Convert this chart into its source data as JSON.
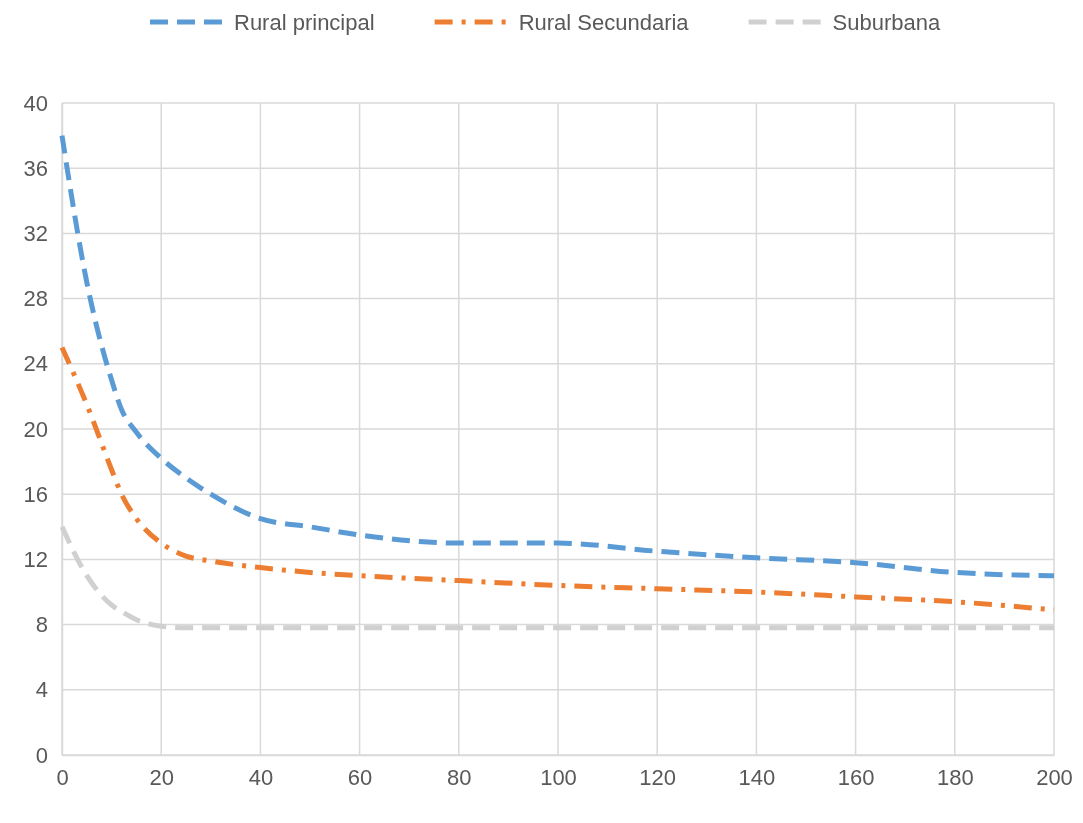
{
  "chart_data": {
    "type": "line",
    "legend": "top",
    "grid": true,
    "xlim": [
      0,
      200
    ],
    "xticks": [
      0,
      20,
      40,
      60,
      80,
      100,
      120,
      140,
      160,
      180,
      200
    ],
    "ylim": [
      0,
      40
    ],
    "yticks": [
      0,
      4,
      8,
      12,
      16,
      20,
      24,
      28,
      32,
      36,
      40
    ],
    "x": [
      0,
      5,
      10,
      12,
      15,
      20,
      25,
      30,
      40,
      50,
      60,
      80,
      100,
      120,
      140,
      160,
      180,
      200
    ],
    "series": [
      {
        "name": "Rural principal",
        "color": "#5b9bd5",
        "line_style": "dashed",
        "values": [
          38,
          29,
          23,
          21.2,
          19.8,
          18.2,
          17,
          16,
          14.5,
          14,
          13.5,
          13,
          13,
          12.5,
          12.1,
          11.8,
          11.2,
          11
        ]
      },
      {
        "name": "Rural Secundaria",
        "color": "#ed7d31",
        "line_style": "dashdot",
        "values": [
          25,
          21.5,
          17.5,
          16,
          14.5,
          13,
          12.2,
          11.9,
          11.5,
          11.2,
          11,
          10.7,
          10.4,
          10.2,
          10,
          9.7,
          9.4,
          8.9
        ]
      },
      {
        "name": "Suburbana",
        "color": "#d0d0d0",
        "line_style": "dashed",
        "values": [
          14,
          11,
          9.2,
          8.8,
          8.3,
          7.9,
          7.8,
          7.8,
          7.8,
          7.8,
          7.8,
          7.8,
          7.8,
          7.8,
          7.8,
          7.8,
          7.8,
          7.8
        ]
      }
    ]
  }
}
